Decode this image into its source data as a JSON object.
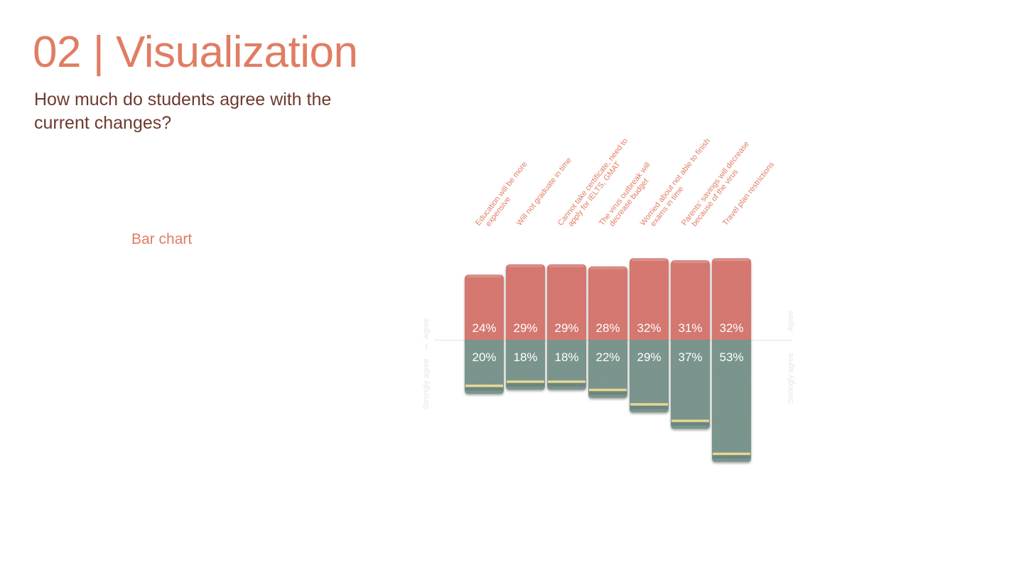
{
  "header": {
    "title": "02 | Visualization",
    "subtitle": "How much do students agree with the current changes?",
    "chart_type_label": "Bar chart"
  },
  "colors": {
    "accent": "#e07d63",
    "subtitle": "#6e3a2e",
    "agree_bar": "#d87a72",
    "strongly_agree_bar": "#7d9890",
    "stripe": "#f0dc96"
  },
  "chart_data": {
    "type": "bar",
    "categories": [
      "Education will be more expensive",
      "Will not graduate in time",
      "Cannot take certificate, need to apply for IELTS, GMAT",
      "The virus outbreak will decrease budget",
      "Worried about not able to finish exams in time",
      "Parents' savings will decrease because of the virus",
      "Travel plan restrictions"
    ],
    "category_lines": [
      [
        "Education will be more",
        "expensive"
      ],
      [
        "Will not graduate in time"
      ],
      [
        "Cannot take certificate, need to",
        "apply for IELTS, GMAT"
      ],
      [
        "The virus outbreak will",
        "decrease budget"
      ],
      [
        "Worried about not able to finish",
        "exams in time"
      ],
      [
        "Parents' savings will decrease",
        "because of the virus"
      ],
      [
        "Travel plan restrictions"
      ]
    ],
    "series": [
      {
        "name": "Agree",
        "values": [
          24,
          29,
          29,
          28,
          32,
          31,
          32
        ],
        "direction": "up"
      },
      {
        "name": "Strongly agree",
        "values": [
          20,
          18,
          18,
          22,
          29,
          37,
          53
        ],
        "direction": "down"
      }
    ],
    "unit": "%",
    "value_labels": {
      "agree": [
        "24%",
        "29%",
        "29%",
        "28%",
        "32%",
        "31%",
        "32%"
      ],
      "strongly_agree": [
        "20%",
        "18%",
        "18%",
        "22%",
        "29%",
        "37%",
        "53%"
      ]
    },
    "axis_labels": {
      "up": "Agree",
      "down": "Strongly agree"
    }
  }
}
